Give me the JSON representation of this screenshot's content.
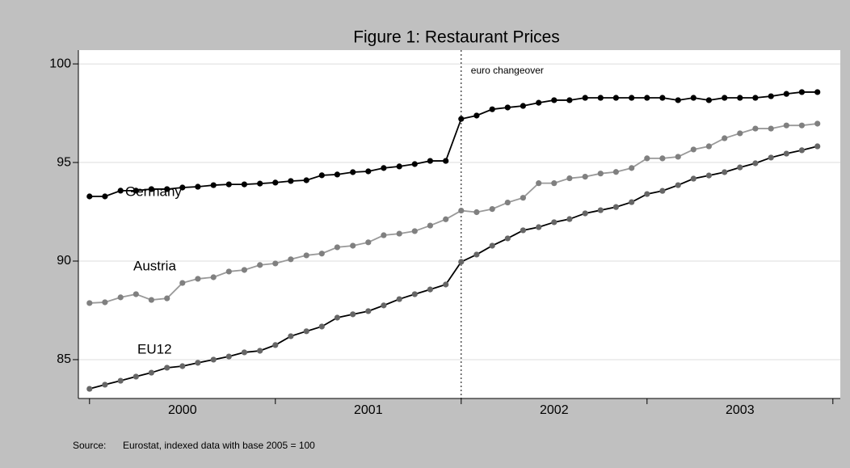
{
  "chart_data": {
    "type": "line",
    "title": "Figure 1: Restaurant Prices",
    "x": [
      2000,
      2000.083,
      2000.167,
      2000.25,
      2000.333,
      2000.417,
      2000.5,
      2000.583,
      2000.667,
      2000.75,
      2000.833,
      2000.917,
      2001,
      2001.083,
      2001.167,
      2001.25,
      2001.333,
      2001.417,
      2001.5,
      2001.583,
      2001.667,
      2001.75,
      2001.833,
      2001.917,
      2002,
      2002.083,
      2002.167,
      2002.25,
      2002.333,
      2002.417,
      2002.5,
      2002.583,
      2002.667,
      2002.75,
      2002.833,
      2002.917,
      2003,
      2003.083,
      2003.167,
      2003.25,
      2003.333,
      2003.417,
      2003.5,
      2003.583,
      2003.667,
      2003.75,
      2003.833,
      2003.917
    ],
    "series": [
      {
        "name": "Germany",
        "color": "#000000",
        "marker_color": "#000000",
        "values": [
          93.28,
          93.28,
          93.57,
          93.57,
          93.65,
          93.65,
          93.73,
          93.77,
          93.85,
          93.89,
          93.89,
          93.93,
          93.98,
          94.06,
          94.1,
          94.35,
          94.39,
          94.51,
          94.55,
          94.72,
          94.8,
          94.92,
          95.08,
          95.08,
          97.21,
          97.38,
          97.7,
          97.79,
          97.87,
          98.03,
          98.16,
          98.16,
          98.28,
          98.28,
          98.28,
          98.28,
          98.28,
          98.28,
          98.16,
          98.28,
          98.16,
          98.28,
          98.28,
          98.28,
          98.36,
          98.48,
          98.57,
          98.57
        ]
      },
      {
        "name": "Austria",
        "color": "#999999",
        "marker_color": "#808080",
        "values": [
          87.87,
          87.91,
          88.16,
          88.32,
          88.03,
          88.11,
          88.89,
          89.1,
          89.18,
          89.47,
          89.55,
          89.8,
          89.88,
          90.09,
          90.29,
          90.38,
          90.7,
          90.78,
          90.95,
          91.31,
          91.39,
          91.52,
          91.8,
          92.12,
          92.56,
          92.48,
          92.64,
          92.97,
          93.21,
          93.95,
          93.95,
          94.2,
          94.28,
          94.44,
          94.52,
          94.72,
          95.21,
          95.21,
          95.29,
          95.66,
          95.82,
          96.23,
          96.48,
          96.72,
          96.72,
          96.88,
          96.88,
          96.97
        ]
      },
      {
        "name": "EU12",
        "color": "#000000",
        "marker_color": "#666666",
        "values": [
          83.52,
          83.73,
          83.93,
          84.14,
          84.34,
          84.59,
          84.67,
          84.84,
          85.0,
          85.16,
          85.37,
          85.45,
          85.74,
          86.19,
          86.44,
          86.68,
          87.13,
          87.3,
          87.46,
          87.75,
          88.07,
          88.32,
          88.56,
          88.81,
          89.96,
          90.33,
          90.78,
          91.15,
          91.56,
          91.72,
          91.97,
          92.13,
          92.42,
          92.58,
          92.74,
          92.99,
          93.4,
          93.56,
          93.85,
          94.18,
          94.34,
          94.51,
          94.75,
          94.96,
          95.25,
          95.45,
          95.62,
          95.82
        ]
      }
    ],
    "xlim": [
      1999.94,
      2004.04
    ],
    "xticks": [
      {
        "value": 2000.5,
        "label": "2000"
      },
      {
        "value": 2001.5,
        "label": "2001"
      },
      {
        "value": 2002.5,
        "label": "2002"
      },
      {
        "value": 2003.5,
        "label": "2003"
      }
    ],
    "xtick_marks": [
      2000,
      2001,
      2002,
      2003,
      2004
    ],
    "ylim": [
      83.03,
      100.7
    ],
    "yticks": [
      85,
      90,
      95,
      100
    ],
    "grid": true,
    "vline": {
      "x": 2002,
      "label": "euro changeover"
    },
    "source": {
      "label": "Source:",
      "text": "Eurostat, indexed data with base 2005 = 100"
    }
  }
}
